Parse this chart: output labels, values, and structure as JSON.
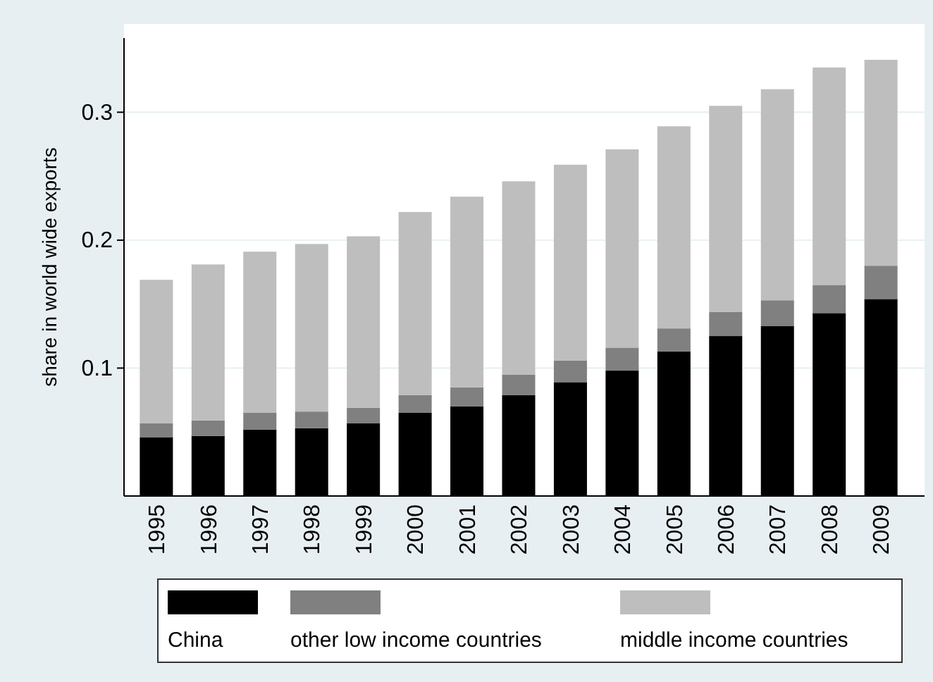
{
  "chart_data": {
    "type": "bar",
    "stacked": true,
    "ylabel": "share in world wide exports",
    "categories": [
      "1995",
      "1996",
      "1997",
      "1998",
      "1999",
      "2000",
      "2001",
      "2002",
      "2003",
      "2004",
      "2005",
      "2006",
      "2007",
      "2008",
      "2009"
    ],
    "series": [
      {
        "name": "China",
        "color": "#000000",
        "values": [
          0.046,
          0.047,
          0.052,
          0.053,
          0.057,
          0.065,
          0.07,
          0.079,
          0.089,
          0.098,
          0.113,
          0.125,
          0.133,
          0.143,
          0.154
        ]
      },
      {
        "name": "other low income countries",
        "color": "#808080",
        "values": [
          0.011,
          0.012,
          0.013,
          0.013,
          0.012,
          0.014,
          0.015,
          0.016,
          0.017,
          0.018,
          0.018,
          0.019,
          0.02,
          0.022,
          0.026
        ]
      },
      {
        "name": "middle income countries",
        "color": "#bebebe",
        "values": [
          0.112,
          0.122,
          0.126,
          0.131,
          0.134,
          0.143,
          0.149,
          0.151,
          0.153,
          0.155,
          0.158,
          0.161,
          0.165,
          0.17,
          0.161
        ]
      }
    ],
    "ylim": [
      0,
      0.358
    ],
    "yticks": [
      0.1,
      0.2,
      0.3
    ],
    "grid": "y",
    "legend": "bottom"
  }
}
